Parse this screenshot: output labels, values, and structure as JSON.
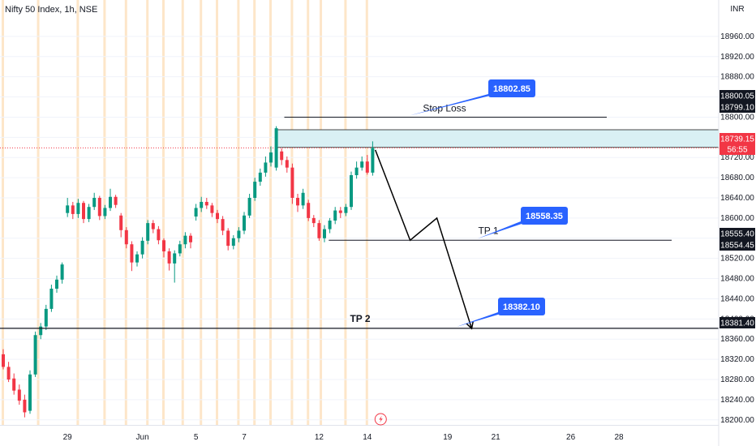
{
  "header": {
    "title": "Nifty 50 Index, 1h, NSE"
  },
  "currency": "INR",
  "colors": {
    "up": "#089981",
    "down": "#f23645",
    "accent": "#2962ff",
    "session_band": "#fde6c9",
    "zone": "#d9f0f4",
    "line": "#131722"
  },
  "chart_data": {
    "type": "candlestick",
    "ylim": [
      18190,
      19000
    ],
    "y_ticks": [
      18200,
      18240,
      18280,
      18320,
      18360,
      18400,
      18440,
      18480,
      18520,
      18560,
      18600,
      18640,
      18680,
      18720,
      18760,
      18800,
      18840,
      18880,
      18920,
      18960
    ],
    "y_tick_labels": [
      "18200.00",
      "18240.00",
      "18280.00",
      "18320.00",
      "18360.00",
      "18400.00",
      "18440.00",
      "18480.00",
      "18520.00",
      "18560.00",
      "18600.00",
      "18640.00",
      "18680.00",
      "18720.00",
      "18760.00",
      "18800.00",
      "18840.00",
      "18880.00",
      "18920.00",
      "18960.00"
    ],
    "x_labels": [
      {
        "label": "29",
        "slot": 12
      },
      {
        "label": "Jun",
        "slot": 26
      },
      {
        "label": "5",
        "slot": 36
      },
      {
        "label": "7",
        "slot": 45
      },
      {
        "label": "12",
        "slot": 59
      },
      {
        "label": "14",
        "slot": 68
      },
      {
        "label": "19",
        "slot": 83
      },
      {
        "label": "21",
        "slot": 92
      },
      {
        "label": "26",
        "slot": 106
      },
      {
        "label": "28",
        "slot": 115
      }
    ],
    "session_slots": [
      0,
      6.6,
      14,
      19,
      23,
      27,
      30,
      33.6,
      37,
      40,
      44,
      47,
      50,
      54,
      57,
      59.4,
      64,
      68
    ],
    "candles": [
      [
        18330,
        18305,
        18340,
        18300
      ],
      [
        18305,
        18280,
        18315,
        18275
      ],
      [
        18282,
        18258,
        18292,
        18250
      ],
      [
        18260,
        18238,
        18270,
        18230
      ],
      [
        18240,
        18215,
        18250,
        18205
      ],
      [
        18218,
        18290,
        18298,
        18212
      ],
      [
        18290,
        18368,
        18375,
        18285
      ],
      [
        18368,
        18385,
        18392,
        18360
      ],
      [
        18385,
        18420,
        18428,
        18378
      ],
      [
        18420,
        18460,
        18468,
        18414
      ],
      [
        18460,
        18478,
        18486,
        18452
      ],
      [
        18478,
        18508,
        18512,
        18470
      ],
      [
        18610,
        18625,
        18640,
        18602
      ],
      [
        18625,
        18608,
        18632,
        18598
      ],
      [
        18608,
        18630,
        18638,
        18600
      ],
      [
        18630,
        18598,
        18634,
        18590
      ],
      [
        18598,
        18622,
        18628,
        18592
      ],
      [
        18622,
        18640,
        18650,
        18616
      ],
      [
        18640,
        18604,
        18644,
        18596
      ],
      [
        18604,
        18620,
        18626,
        18598
      ],
      [
        18620,
        18642,
        18658,
        18614
      ],
      [
        18642,
        18626,
        18646,
        18620
      ],
      [
        18605,
        18576,
        18610,
        18562
      ],
      [
        18576,
        18548,
        18582,
        18540
      ],
      [
        18548,
        18512,
        18554,
        18495
      ],
      [
        18512,
        18528,
        18534,
        18504
      ],
      [
        18528,
        18555,
        18562,
        18520
      ],
      [
        18555,
        18590,
        18596,
        18548
      ],
      [
        18590,
        18578,
        18596,
        18570
      ],
      [
        18578,
        18556,
        18584,
        18548
      ],
      [
        18556,
        18534,
        18560,
        18522
      ],
      [
        18534,
        18510,
        18540,
        18496
      ],
      [
        18510,
        18530,
        18536,
        18472
      ],
      [
        18530,
        18548,
        18555,
        18524
      ],
      [
        18548,
        18565,
        18572,
        18540
      ],
      [
        18565,
        18552,
        18570,
        18540
      ],
      [
        18603,
        18620,
        18628,
        18595
      ],
      [
        18620,
        18632,
        18642,
        18612
      ],
      [
        18632,
        18625,
        18640,
        18618
      ],
      [
        18625,
        18610,
        18630,
        18602
      ],
      [
        18610,
        18598,
        18616,
        18590
      ],
      [
        18598,
        18575,
        18604,
        18566
      ],
      [
        18575,
        18545,
        18580,
        18536
      ],
      [
        18545,
        18560,
        18566,
        18538
      ],
      [
        18560,
        18575,
        18582,
        18552
      ],
      [
        18575,
        18605,
        18612,
        18568
      ],
      [
        18605,
        18640,
        18648,
        18600
      ],
      [
        18640,
        18672,
        18680,
        18634
      ],
      [
        18672,
        18690,
        18698,
        18664
      ],
      [
        18690,
        18710,
        18722,
        18682
      ],
      [
        18710,
        18730,
        18742,
        18702
      ],
      [
        18700,
        18778,
        18782,
        18694
      ],
      [
        18732,
        18715,
        18738,
        18705
      ],
      [
        18715,
        18700,
        18722,
        18690
      ],
      [
        18700,
        18640,
        18708,
        18628
      ],
      [
        18640,
        18625,
        18648,
        18612
      ],
      [
        18625,
        18650,
        18658,
        18618
      ],
      [
        18630,
        18600,
        18636,
        18594
      ],
      [
        18600,
        18590,
        18606,
        18582
      ],
      [
        18590,
        18560,
        18596,
        18555
      ],
      [
        18560,
        18578,
        18586,
        18552
      ],
      [
        18578,
        18595,
        18600,
        18570
      ],
      [
        18595,
        18615,
        18622,
        18588
      ],
      [
        18615,
        18610,
        18622,
        18600
      ],
      [
        18610,
        18622,
        18628,
        18604
      ],
      [
        18622,
        18685,
        18692,
        18616
      ],
      [
        18685,
        18700,
        18712,
        18678
      ],
      [
        18700,
        18712,
        18722,
        18694
      ],
      [
        18712,
        18690,
        18725,
        18686
      ],
      [
        18690,
        18739,
        18752,
        18684
      ]
    ]
  },
  "levels": {
    "stop_loss_label": "Stop Loss",
    "stop_loss_value": 18800,
    "tp1_label": "TP 1",
    "tp1_value": 18556,
    "tp2_label": "TP 2",
    "tp2_value": 18381.4,
    "zone_top": 18775,
    "zone_bottom": 18740
  },
  "price_tags": [
    {
      "text": "18802.85",
      "anchor_slot": 75,
      "anchor_price": 18800
    },
    {
      "text": "18558.35",
      "anchor_slot": 88,
      "anchor_price": 18556
    },
    {
      "text": "18382.10",
      "anchor_slot": 84,
      "anchor_price": 18381
    }
  ],
  "path_points": [
    {
      "slot": 69.5,
      "price": 18735
    },
    {
      "slot": 76,
      "price": 18556
    },
    {
      "slot": 81,
      "price": 18600
    },
    {
      "slot": 87.5,
      "price": 18381
    }
  ],
  "axis_badges": [
    {
      "text": "18800.05",
      "price": 18800.05,
      "style": "dark"
    },
    {
      "text": "18799.10",
      "price": 18799.1,
      "style": "dark"
    },
    {
      "text": "18739.15",
      "price": 18739.15,
      "style": "red"
    },
    {
      "text": "56:55",
      "price": 18739.15,
      "style": "red-sub"
    },
    {
      "text": "18555.40",
      "price": 18555.4,
      "style": "dark"
    },
    {
      "text": "18554.45",
      "price": 18554.45,
      "style": "dark"
    },
    {
      "text": "18381.40",
      "price": 18381.4,
      "style": "dark"
    }
  ],
  "flash_icon": "lightning-icon"
}
